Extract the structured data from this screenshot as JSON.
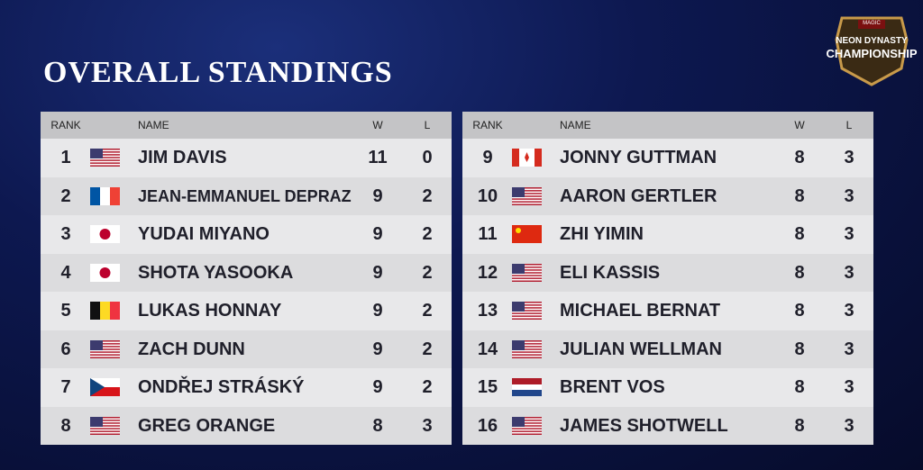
{
  "header": {
    "title": "OVERALL STANDINGS",
    "logo": {
      "brand": "MAGIC",
      "event": "NEON DYNASTY",
      "name": "CHAMPIONSHIP"
    }
  },
  "tables": [
    {
      "columns": [
        "RANK",
        "NAME",
        "W",
        "L"
      ],
      "rows": [
        [
          1,
          "JIM DAVIS",
          11,
          0
        ],
        [
          2,
          "JEAN-EMMANUEL DEPRAZ",
          9,
          2
        ],
        [
          3,
          "YUDAI MIYANO",
          9,
          2
        ],
        [
          4,
          "SHOTA YASOOKA",
          9,
          2
        ],
        [
          5,
          "LUKAS HONNAY",
          9,
          2
        ],
        [
          6,
          "ZACH DUNN",
          9,
          2
        ],
        [
          7,
          "ONDŘEJ STRÁSKÝ",
          9,
          2
        ],
        [
          8,
          "GREG ORANGE",
          8,
          3
        ]
      ]
    },
    {
      "columns": [
        "RANK",
        "NAME",
        "W",
        "L"
      ],
      "rows": [
        [
          9,
          "JONNY GUTTMAN",
          8,
          3
        ],
        [
          10,
          "AARON GERTLER",
          8,
          3
        ],
        [
          11,
          "ZHI YIMIN",
          8,
          3
        ],
        [
          12,
          "ELI KASSIS",
          8,
          3
        ],
        [
          13,
          "MICHAEL BERNAT",
          8,
          3
        ],
        [
          14,
          "JULIAN WELLMAN",
          8,
          3
        ],
        [
          15,
          "BRENT VOS",
          8,
          3
        ],
        [
          16,
          "JAMES SHOTWELL",
          8,
          3
        ]
      ]
    }
  ]
}
